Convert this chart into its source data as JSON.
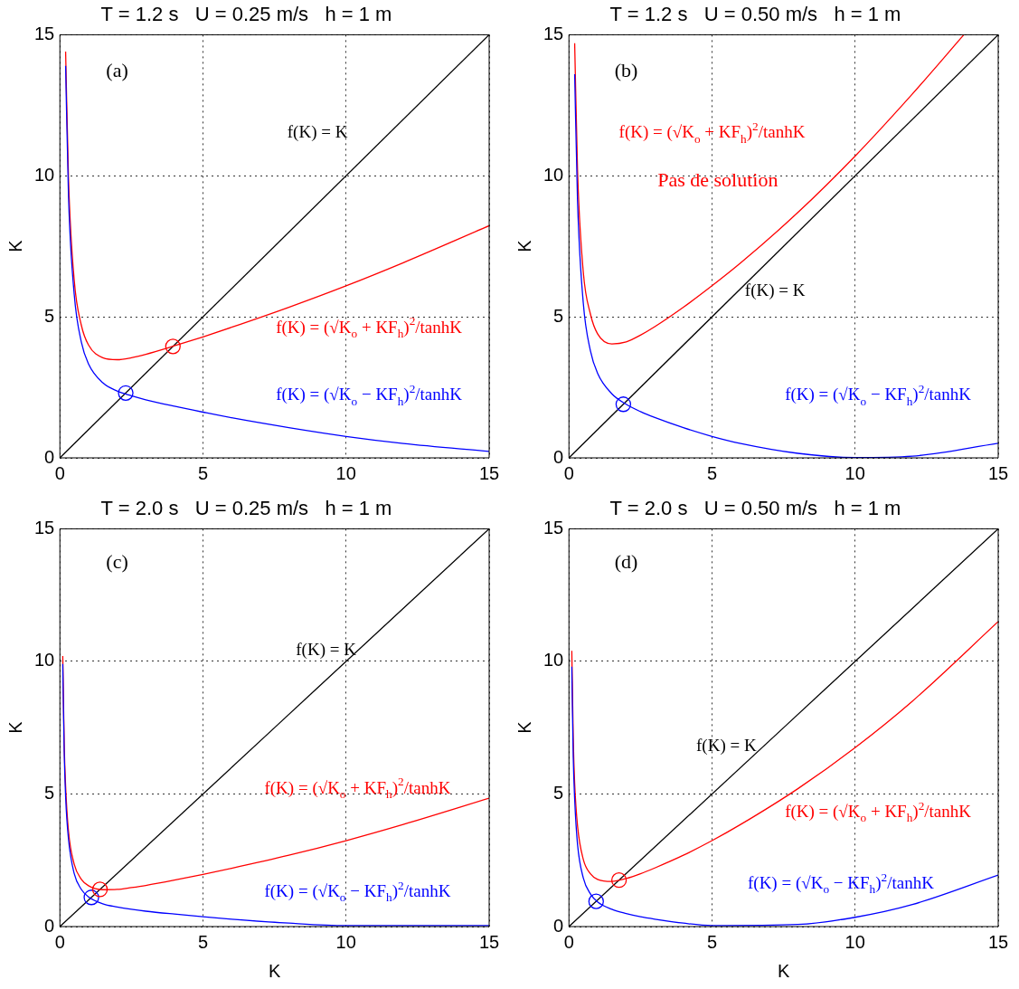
{
  "chart_data": [
    {
      "type": "line",
      "title": "T = 1.2 s   U = 0.25 m/s   h = 1 m",
      "ylabel": "K",
      "xlim": [
        0,
        15
      ],
      "ylim": [
        0,
        15
      ],
      "xticks": [
        0,
        5,
        10,
        15
      ],
      "yticks": [
        0,
        5,
        10,
        15
      ],
      "grid": true,
      "annotations": [
        "(a)"
      ],
      "series": [
        {
          "name": "f(K) = K",
          "color": "#000000",
          "x": [
            0,
            15
          ],
          "values": [
            0,
            15
          ]
        },
        {
          "name": "f(K) = (√K$_{o}$ + KF$_{h}$)$^{2}$/tanhK",
          "color": "#ff0000",
          "x": [
            0.2,
            0.3,
            0.5,
            0.75,
            1,
            1.5,
            2,
            2.5,
            3,
            4,
            5,
            6,
            8,
            10,
            12,
            15
          ],
          "values": [
            14.4,
            9.9,
            6.3,
            4.7,
            4.0,
            3.55,
            3.48,
            3.55,
            3.67,
            3.97,
            4.29,
            4.63,
            5.34,
            6.1,
            6.92,
            8.23
          ]
        },
        {
          "name": "f(K) = (√K$_{o}$ − KF$_{h}$)$^{2}$/tanhK",
          "color": "#0000ff",
          "x": [
            0.2,
            0.3,
            0.5,
            0.75,
            1,
            1.5,
            2,
            2.5,
            3,
            4,
            5,
            6,
            8,
            10,
            12,
            15
          ],
          "values": [
            13.9,
            9.3,
            5.8,
            4.1,
            3.33,
            2.66,
            2.37,
            2.2,
            2.06,
            1.83,
            1.62,
            1.42,
            1.07,
            0.76,
            0.51,
            0.23
          ]
        },
        {
          "type": "scatter",
          "marker": "circle",
          "color": "#ff0000",
          "x": [
            3.95
          ],
          "values": [
            3.95
          ]
        },
        {
          "type": "scatter",
          "marker": "circle",
          "color": "#0000ff",
          "x": [
            2.3
          ],
          "values": [
            2.3
          ]
        }
      ]
    },
    {
      "type": "line",
      "title": "T = 1.2 s   U = 0.50 m/s   h = 1 m",
      "ylabel": "K",
      "xlim": [
        0,
        15
      ],
      "ylim": [
        0,
        15
      ],
      "xticks": [
        0,
        5,
        10,
        15
      ],
      "yticks": [
        0,
        5,
        10,
        15
      ],
      "grid": true,
      "annotations": [
        "(b)",
        "Pas de solution"
      ],
      "series": [
        {
          "name": "f(K) = K",
          "color": "#000000",
          "x": [
            0,
            15
          ],
          "values": [
            0,
            15
          ]
        },
        {
          "name": "f(K) = (√K$_{o}$ + KF$_{h}$)$^{2}$/tanhK",
          "color": "#ff0000",
          "x": [
            0.2,
            0.3,
            0.5,
            0.75,
            1,
            1.5,
            2,
            2.5,
            3,
            4,
            5,
            6,
            8,
            10,
            12,
            13.8
          ],
          "values": [
            14.7,
            10.2,
            6.6,
            5.1,
            4.4,
            4.04,
            4.11,
            4.35,
            4.65,
            5.34,
            6.1,
            6.91,
            8.7,
            10.7,
            12.9,
            15
          ]
        },
        {
          "name": "f(K) = (√K$_{o}$ − KF$_{h}$)$^{2}$/tanhK",
          "color": "#0000ff",
          "x": [
            0.2,
            0.3,
            0.5,
            0.75,
            1,
            1.5,
            2,
            2.5,
            3,
            4,
            5,
            6,
            8,
            10,
            12,
            15
          ],
          "values": [
            13.6,
            9.1,
            5.5,
            3.8,
            3.0,
            2.27,
            1.9,
            1.64,
            1.43,
            1.07,
            0.76,
            0.51,
            0.16,
            0.01,
            0.06,
            0.52
          ]
        },
        {
          "type": "scatter",
          "marker": "circle",
          "color": "#0000ff",
          "x": [
            1.9
          ],
          "values": [
            1.9
          ]
        }
      ]
    },
    {
      "type": "line",
      "title": "T = 2.0 s   U = 0.25 m/s   h = 1 m",
      "xlabel": "K",
      "ylabel": "K",
      "xlim": [
        0,
        15
      ],
      "ylim": [
        0,
        15
      ],
      "xticks": [
        0,
        5,
        10,
        15
      ],
      "yticks": [
        0,
        5,
        10,
        15
      ],
      "grid": true,
      "annotations": [
        "(c)"
      ],
      "series": [
        {
          "name": "f(K) = K",
          "color": "#000000",
          "x": [
            0,
            15
          ],
          "values": [
            0,
            15
          ]
        },
        {
          "name": "f(K) = (√K$_{o}$ + KF$_{h}$)$^{2}$/tanhK",
          "color": "#ff0000",
          "x": [
            0.1,
            0.15,
            0.2,
            0.3,
            0.5,
            0.75,
            1,
            1.5,
            2,
            2.5,
            3,
            4,
            5,
            6,
            8,
            10,
            12,
            15
          ],
          "values": [
            10.2,
            6.9,
            5.3,
            3.6,
            2.35,
            1.78,
            1.54,
            1.39,
            1.4,
            1.47,
            1.55,
            1.75,
            1.97,
            2.2,
            2.69,
            3.24,
            3.85,
            4.84
          ]
        },
        {
          "name": "f(K) = (√K$_{o}$ − KF$_{h}$)$^{2}$/tanhK",
          "color": "#0000ff",
          "x": [
            0.1,
            0.15,
            0.2,
            0.3,
            0.5,
            0.75,
            1,
            1.5,
            2,
            2.5,
            3,
            4,
            5,
            6,
            8,
            10,
            15
          ],
          "values": [
            9.9,
            6.6,
            4.9,
            3.3,
            2.0,
            1.4,
            1.12,
            0.86,
            0.74,
            0.65,
            0.58,
            0.47,
            0.37,
            0.28,
            0.13,
            0.04,
            0.04
          ]
        },
        {
          "type": "scatter",
          "marker": "circle",
          "color": "#ff0000",
          "x": [
            1.4
          ],
          "values": [
            1.4
          ]
        },
        {
          "type": "scatter",
          "marker": "circle",
          "color": "#0000ff",
          "x": [
            1.1
          ],
          "values": [
            1.1
          ]
        }
      ]
    },
    {
      "type": "line",
      "title": "T = 2.0 s   U = 0.50 m/s   h = 1 m",
      "xlabel": "K",
      "ylabel": "K",
      "xlim": [
        0,
        15
      ],
      "ylim": [
        0,
        15
      ],
      "xticks": [
        0,
        5,
        10,
        15
      ],
      "yticks": [
        0,
        5,
        10,
        15
      ],
      "grid": true,
      "annotations": [
        "(d)"
      ],
      "series": [
        {
          "name": "f(K) = K",
          "color": "#000000",
          "x": [
            0,
            15
          ],
          "values": [
            0,
            15
          ]
        },
        {
          "name": "f(K) = (√K$_{o}$ + KF$_{h}$)$^{2}$/tanhK",
          "color": "#ff0000",
          "x": [
            0.1,
            0.15,
            0.2,
            0.3,
            0.5,
            0.75,
            1,
            1.5,
            2,
            2.5,
            3,
            4,
            5,
            6,
            8,
            10,
            12,
            15
          ],
          "values": [
            10.4,
            7.1,
            5.4,
            3.8,
            2.54,
            1.99,
            1.78,
            1.7,
            1.81,
            1.99,
            2.21,
            2.69,
            3.24,
            3.85,
            5.2,
            6.75,
            8.5,
            11.5
          ]
        },
        {
          "name": "f(K) = (√K$_{o}$ − KF$_{h}$)$^{2}$/tanhK",
          "color": "#0000ff",
          "x": [
            0.1,
            0.15,
            0.2,
            0.3,
            0.5,
            0.75,
            1,
            1.5,
            2,
            2.5,
            3,
            4,
            5,
            8,
            10,
            12,
            15
          ],
          "values": [
            9.8,
            6.4,
            4.8,
            3.1,
            1.84,
            1.23,
            0.93,
            0.65,
            0.49,
            0.37,
            0.28,
            0.13,
            0.04,
            0.08,
            0.35,
            0.83,
            1.94
          ]
        },
        {
          "type": "scatter",
          "marker": "circle",
          "color": "#ff0000",
          "x": [
            1.75
          ],
          "values": [
            1.75
          ]
        },
        {
          "type": "scatter",
          "marker": "circle",
          "color": "#0000ff",
          "x": [
            0.95
          ],
          "values": [
            0.95
          ]
        }
      ]
    }
  ]
}
